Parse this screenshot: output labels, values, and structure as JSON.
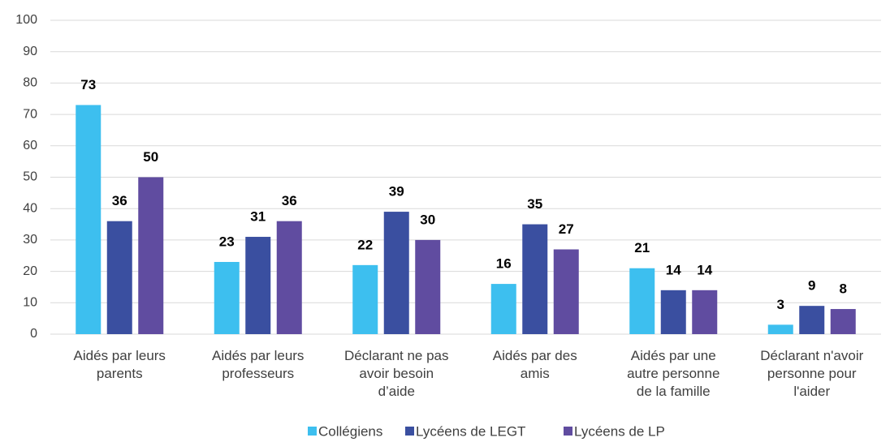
{
  "chart_data": {
    "type": "bar",
    "categories": [
      "Aidés par leurs\nparents",
      "Aidés par leurs\nprofesseurs",
      "Déclarant ne pas\navoir besoin\nd’aide",
      "Aidés par des\namis",
      "Aidés par une\nautre personne\nde la famille",
      "Déclarant n'avoir\npersonne pour\nl'aider"
    ],
    "series": [
      {
        "name": "Collégiens",
        "color": "#3dbfef",
        "values": [
          73,
          23,
          22,
          16,
          21,
          3
        ]
      },
      {
        "name": "Lycéens de LEGT",
        "color": "#3a4fa0",
        "values": [
          36,
          31,
          39,
          35,
          14,
          9
        ]
      },
      {
        "name": "Lycéens de LP",
        "color": "#604ca0",
        "values": [
          50,
          36,
          30,
          27,
          14,
          8
        ]
      }
    ],
    "ylim": [
      0,
      100
    ],
    "yticks": [
      0,
      10,
      20,
      30,
      40,
      50,
      60,
      70,
      80,
      90,
      100
    ],
    "grid": true,
    "legend": "bottom"
  }
}
